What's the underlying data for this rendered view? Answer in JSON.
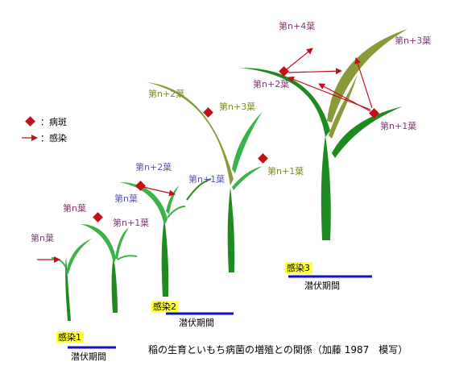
{
  "legend": {
    "lesion_label": "：病斑",
    "infection_label": "：感染"
  },
  "stages": [
    {
      "label": "感染1",
      "latent": "潜伏期間"
    },
    {
      "label": "感染2",
      "latent": "潜伏期間"
    },
    {
      "label": "感染3",
      "latent": "潜伏期間"
    }
  ],
  "leaf_labels": {
    "p1_n": "第n葉",
    "p2_n": "第n葉",
    "p2_n1": "第n+1葉",
    "p3_n": "第n葉",
    "p3_n2": "第n+2葉",
    "p4_n2": "第n+2葉",
    "p4_n3": "第n+3葉",
    "p4_n1": "第n+1葉",
    "p5_n1": "第n+1葉",
    "p6_n4": "第n+4葉",
    "p6_n3": "第n+3葉",
    "p6_n2": "第n+2葉",
    "p6_n1": "第n+1葉"
  },
  "caption": "稲の生育といもち病菌の増殖との関係（加藤 1987　模写）",
  "colors": {
    "leaf_dark": "#1f8a1f",
    "leaf_light": "#3cb34a",
    "leaf_olive": "#8a9a3a",
    "lesion": "#c0101a",
    "arrow": "#c0101a",
    "stage_bg": "#ffff40",
    "latent_bar": "#1010c8"
  }
}
